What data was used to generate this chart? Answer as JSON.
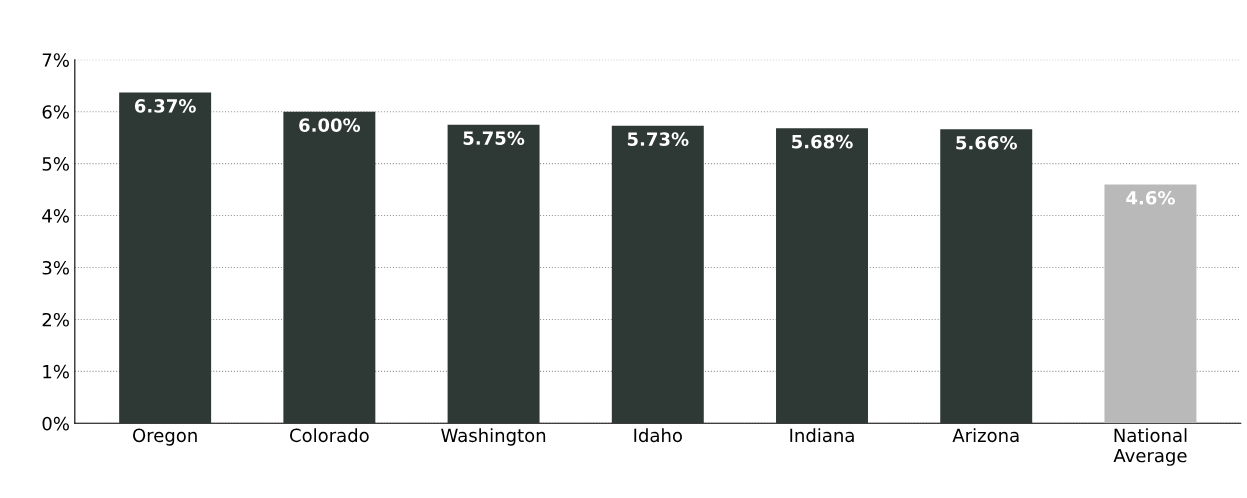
{
  "chart_data": {
    "type": "bar",
    "categories": [
      "Oregon",
      "Colorado",
      "Washington",
      "Idaho",
      "Indiana",
      "Arizona",
      "National\nAverage"
    ],
    "values": [
      6.37,
      6.0,
      5.75,
      5.73,
      5.68,
      5.66,
      4.6
    ],
    "colors": [
      "#2e3834",
      "#2e3834",
      "#2e3834",
      "#2e3834",
      "#2e3834",
      "#2e3834",
      "#b9b9b9"
    ],
    "value_labels": [
      "6.37%",
      "6.00%",
      "5.75%",
      "5.73%",
      "5.68%",
      "5.66%",
      "4.6%"
    ],
    "ylim": [
      0,
      7
    ],
    "yticks": [
      {
        "value": 0,
        "label": "0%"
      },
      {
        "value": 1,
        "label": "1%"
      },
      {
        "value": 2,
        "label": "2%"
      },
      {
        "value": 3,
        "label": "3%"
      },
      {
        "value": 4,
        "label": "4%"
      },
      {
        "value": 5,
        "label": "5%"
      },
      {
        "value": 6,
        "label": "6%"
      },
      {
        "value": 7,
        "label": "7%"
      }
    ],
    "grid": "y",
    "legend": false
  }
}
